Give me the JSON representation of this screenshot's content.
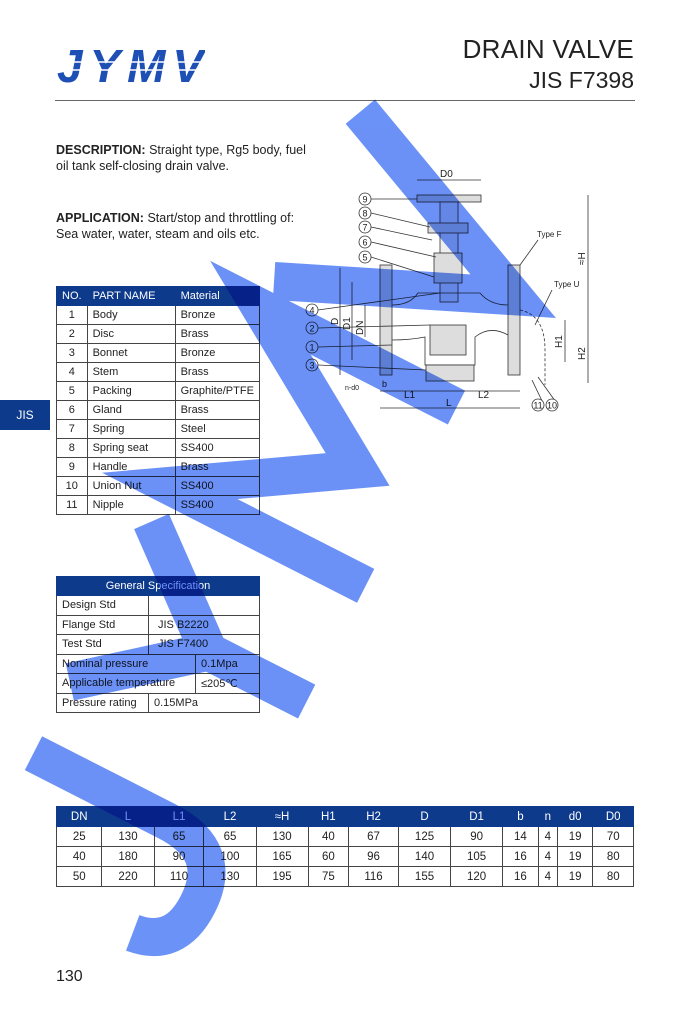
{
  "logo": {
    "text": "JYMV",
    "color": "#1e4fb4"
  },
  "header": {
    "title": "DRAIN VALVE",
    "subtitle": "JIS F7398"
  },
  "description": {
    "label": "DESCRIPTION:",
    "text": " Straight type, Rg5 body, fuel oil tank self-closing drain valve."
  },
  "application": {
    "label": "APPLICATION:",
    "text": " Start/stop and throttling of: Sea water, water, steam and oils etc."
  },
  "side_tab": "JIS",
  "parts": {
    "headers": [
      "NO.",
      "PART  NAME",
      "Material"
    ],
    "rows": [
      [
        "1",
        "Body",
        "Bronze"
      ],
      [
        "2",
        "Disc",
        "Brass"
      ],
      [
        "3",
        "Bonnet",
        "Bronze"
      ],
      [
        "4",
        "Stem",
        "Brass"
      ],
      [
        "5",
        "Packing",
        "Graphite/PTFE"
      ],
      [
        "6",
        "Gland",
        "Brass"
      ],
      [
        "7",
        "Spring",
        "Steel"
      ],
      [
        "8",
        "Spring seat",
        "SS400"
      ],
      [
        "9",
        "Handle",
        "Brass"
      ],
      [
        "10",
        "Union Nut",
        "SS400"
      ],
      [
        "11",
        "Nipple",
        "SS400"
      ]
    ]
  },
  "spec": {
    "title": "General Specification",
    "rows": [
      [
        "Design Std",
        ""
      ],
      [
        "Flange Std",
        "JIS B2220"
      ],
      [
        "Test Std",
        "JIS F7400"
      ],
      [
        "Nominal pressure",
        "0.1Mpa"
      ],
      [
        "Applicable temperature",
        "≤205℃"
      ],
      [
        "Pressure rating",
        "0.15MPa"
      ]
    ]
  },
  "diagram": {
    "labels": {
      "D0": "D0",
      "H": "≈H",
      "H1": "H1",
      "H2": "H2",
      "D": "D",
      "D1": "D1",
      "DN": "DN",
      "L": "L",
      "L1": "L1",
      "L2": "L2",
      "b": "b",
      "nd0": "n-d0",
      "typeF": "Type F",
      "typeU": "Type U"
    },
    "callouts": [
      "9",
      "8",
      "7",
      "6",
      "5",
      "4",
      "2",
      "1",
      "3",
      "11",
      "10"
    ]
  },
  "dims": {
    "headers": [
      "DN",
      "L",
      "L1",
      "L2",
      "≈H",
      "H1",
      "H2",
      "D",
      "D1",
      "b",
      "n",
      "d0",
      "D0"
    ],
    "rows": [
      [
        "25",
        "130",
        "65",
        "65",
        "130",
        "40",
        "67",
        "125",
        "90",
        "14",
        "4",
        "19",
        "70"
      ],
      [
        "40",
        "180",
        "90",
        "100",
        "165",
        "60",
        "96",
        "140",
        "105",
        "16",
        "4",
        "19",
        "80"
      ],
      [
        "50",
        "220",
        "110",
        "130",
        "195",
        "75",
        "116",
        "155",
        "120",
        "16",
        "4",
        "19",
        "80"
      ]
    ]
  },
  "page_number": "130",
  "watermark": {
    "text": "JYMV",
    "color": "#5b86f5"
  }
}
